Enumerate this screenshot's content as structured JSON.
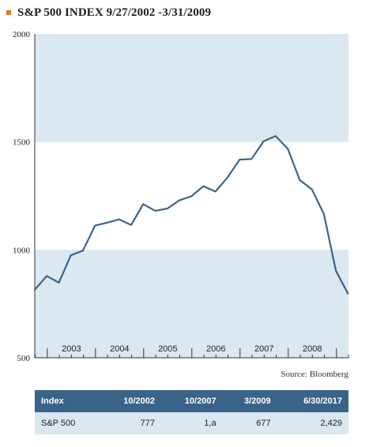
{
  "header": {
    "title": "S&P 500 INDEX 9/27/2002 -3/31/2009"
  },
  "colors": {
    "band": "#d9e8f1",
    "line": "#3f6487",
    "bullet": "#e07b2a",
    "table_header": "#3a6389"
  },
  "chart_data": {
    "type": "line",
    "title": "S&P 500 INDEX 9/27/2002 -3/31/2009",
    "ylim": [
      500,
      2000
    ],
    "yticks": [
      500,
      1000,
      1500,
      2000
    ],
    "ytick_labels": [
      "500",
      "1000",
      "1500",
      "2000"
    ],
    "xlim": [
      2002.74,
      2009.25
    ],
    "year_labels": [
      "2003",
      "2004",
      "2005",
      "2006",
      "2007",
      "2008"
    ],
    "x": [
      2002.74,
      2002.99,
      2003.24,
      2003.49,
      2003.74,
      2003.99,
      2004.24,
      2004.49,
      2004.74,
      2004.99,
      2005.24,
      2005.49,
      2005.74,
      2005.99,
      2006.24,
      2006.49,
      2006.74,
      2006.99,
      2007.24,
      2007.49,
      2007.74,
      2007.99,
      2008.24,
      2008.49,
      2008.74,
      2008.99,
      2009.24
    ],
    "values": [
      815,
      879,
      848,
      975,
      996,
      1112,
      1126,
      1141,
      1115,
      1212,
      1181,
      1191,
      1229,
      1248,
      1295,
      1270,
      1335,
      1418,
      1421,
      1503,
      1527,
      1468,
      1323,
      1280,
      1166,
      903,
      797
    ],
    "bands": [
      [
        500,
        1000
      ],
      [
        1500,
        2000
      ]
    ],
    "grid": false
  },
  "source": "Source: Bloomberg",
  "table": {
    "headers": [
      "Index",
      "10/2002",
      "10/2007",
      "3/2009",
      "6/30/2017"
    ],
    "rows": [
      [
        "S&P 500",
        "777",
        "1,a",
        "677",
        "2,429"
      ]
    ]
  }
}
